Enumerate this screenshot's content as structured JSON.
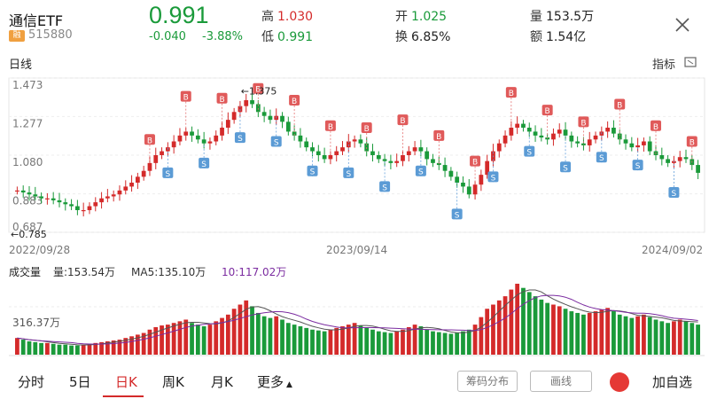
{
  "header": {
    "name": "通信ETF",
    "badge": "融",
    "code": "515880",
    "price": "0.991",
    "change": "-0.040",
    "change_pct": "-3.88%",
    "high_label": "高",
    "high": "1.030",
    "low_label": "低",
    "low": "0.991",
    "open_label": "开",
    "open": "1.025",
    "turnover_label": "换",
    "turnover": "6.85%",
    "vol_label": "量",
    "vol": "153.5万",
    "amount_label": "额",
    "amount": "1.54亿"
  },
  "subheader": {
    "period_label": "日线",
    "indicator_label": "指标"
  },
  "chart_data": {
    "type": "candlestick",
    "y_ticks": [
      "1.473",
      "1.277",
      "1.080",
      "0.883",
      "0.687"
    ],
    "ylim": [
      0.687,
      1.473
    ],
    "dates": [
      "2022/09/28",
      "2023/09/14",
      "2024/09/02"
    ],
    "max_annotation": "←1.375",
    "min_annotation": "←0.785",
    "close_series": [
      0.9,
      0.89,
      0.88,
      0.87,
      0.86,
      0.86,
      0.85,
      0.84,
      0.83,
      0.82,
      0.8,
      0.8,
      0.82,
      0.84,
      0.86,
      0.87,
      0.88,
      0.9,
      0.92,
      0.94,
      0.97,
      1.0,
      1.04,
      1.08,
      1.1,
      1.12,
      1.15,
      1.18,
      1.2,
      1.18,
      1.16,
      1.14,
      1.15,
      1.18,
      1.22,
      1.26,
      1.3,
      1.33,
      1.36,
      1.34,
      1.3,
      1.28,
      1.26,
      1.28,
      1.25,
      1.2,
      1.18,
      1.15,
      1.12,
      1.1,
      1.08,
      1.06,
      1.08,
      1.1,
      1.12,
      1.15,
      1.16,
      1.14,
      1.1,
      1.08,
      1.06,
      1.05,
      1.04,
      1.05,
      1.08,
      1.1,
      1.12,
      1.1,
      1.06,
      1.04,
      1.03,
      1.0,
      0.97,
      0.94,
      0.92,
      0.88,
      0.93,
      0.98,
      1.05,
      1.1,
      1.14,
      1.18,
      1.22,
      1.24,
      1.22,
      1.2,
      1.18,
      1.17,
      1.16,
      1.19,
      1.21,
      1.18,
      1.15,
      1.14,
      1.13,
      1.16,
      1.18,
      1.2,
      1.22,
      1.19,
      1.16,
      1.14,
      1.12,
      1.13,
      1.15,
      1.1,
      1.08,
      1.06,
      1.04,
      1.05,
      1.07,
      1.06,
      1.03,
      0.99
    ],
    "volume": {
      "label": "成交量",
      "vol_text": "量:153.54万",
      "ma5_text": "MA5:135.10万",
      "ma10_text": "10:117.02万",
      "y_tick": "316.37万",
      "series": [
        20,
        18,
        16,
        15,
        14,
        14,
        13,
        12,
        12,
        11,
        11,
        12,
        13,
        14,
        15,
        16,
        17,
        18,
        20,
        22,
        24,
        26,
        30,
        33,
        35,
        36,
        38,
        40,
        42,
        38,
        36,
        34,
        36,
        40,
        44,
        48,
        55,
        60,
        65,
        58,
        50,
        46,
        44,
        46,
        42,
        38,
        36,
        34,
        32,
        30,
        29,
        28,
        30,
        32,
        34,
        36,
        38,
        35,
        32,
        30,
        28,
        27,
        26,
        28,
        30,
        33,
        36,
        34,
        30,
        28,
        27,
        26,
        25,
        26,
        28,
        30,
        36,
        45,
        55,
        60,
        65,
        70,
        78,
        85,
        80,
        75,
        70,
        66,
        62,
        60,
        58,
        55,
        52,
        50,
        48,
        50,
        52,
        54,
        56,
        52,
        48,
        46,
        44,
        46,
        48,
        45,
        42,
        40,
        38,
        40,
        42,
        40,
        38,
        36
      ]
    }
  },
  "tabs": [
    "分时",
    "5日",
    "日K",
    "周K",
    "月K",
    "更多"
  ],
  "active_tab": "日K",
  "buttons": {
    "chips": "筹码分布",
    "draw": "画线",
    "fav": "加自选"
  }
}
